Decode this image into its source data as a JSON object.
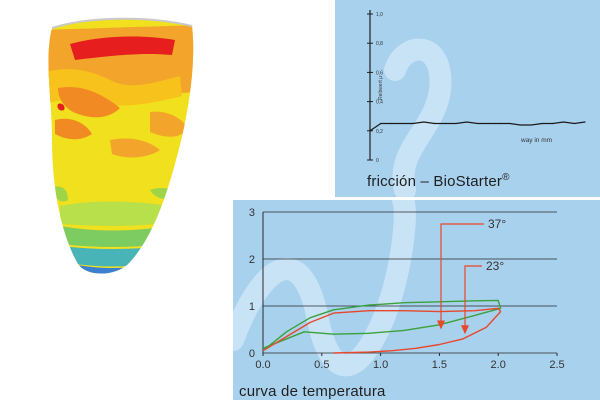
{
  "colors": {
    "panel_bg": "#a8d1ee",
    "swirl": "#cfe6f7",
    "axis": "#1f1f1f",
    "series_green": "#3aa23a",
    "series_red": "#e8472a",
    "annotation_arrow": "#e8472a"
  },
  "illustration": {
    "icon": "pressure-map-cone-icon"
  },
  "friction_chart": {
    "caption": "fricción – BioStarter",
    "caption_mark": "®",
    "ylabel": "Reibwert μ",
    "xlabel": "way in mm"
  },
  "temperature_chart": {
    "caption": "curva de temperatura",
    "annotation_37": "37°",
    "annotation_23": "23°"
  },
  "chart_data": [
    {
      "type": "line",
      "title": "fricción – BioStarter",
      "ylabel": "Reibwert μ",
      "xlabel": "way in mm",
      "y_ticks": [
        "0",
        "0,2",
        "0,4",
        "0,6",
        "0,8",
        "1,0"
      ],
      "ylim": [
        0,
        1.0
      ],
      "xlim": [
        0,
        10
      ],
      "grid": false,
      "series": [
        {
          "x": [
            0,
            0.5,
            1,
            1.5,
            2,
            2.5,
            3,
            3.5,
            4,
            4.5,
            5,
            5.5,
            6,
            6.5,
            7,
            7.5,
            8,
            8.5,
            9,
            9.5,
            10
          ],
          "values": [
            0.2,
            0.25,
            0.25,
            0.25,
            0.25,
            0.26,
            0.25,
            0.25,
            0.25,
            0.26,
            0.25,
            0.25,
            0.25,
            0.25,
            0.24,
            0.24,
            0.25,
            0.25,
            0.26,
            0.25,
            0.26
          ]
        }
      ]
    },
    {
      "type": "line",
      "title": "curva de temperatura",
      "x_ticks": [
        "0.0",
        "0.5",
        "1.0",
        "1.5",
        "2.0",
        "2.5"
      ],
      "y_ticks": [
        "0",
        "1",
        "2",
        "3"
      ],
      "xlim": [
        0,
        2.5
      ],
      "ylim": [
        0,
        3
      ],
      "grid": true,
      "series": [
        {
          "name": "37°",
          "x": [
            0.0,
            0.2,
            0.4,
            0.6,
            0.9,
            1.2,
            1.5,
            1.8,
            2.0,
            2.02,
            1.8,
            1.5,
            1.2,
            0.9,
            0.6,
            0.35,
            0.0
          ],
          "values": [
            0.05,
            0.45,
            0.75,
            0.92,
            1.02,
            1.07,
            1.09,
            1.11,
            1.12,
            0.95,
            0.8,
            0.6,
            0.48,
            0.42,
            0.4,
            0.45,
            0.1
          ]
        },
        {
          "name": "23°",
          "x": [
            0.0,
            0.2,
            0.4,
            0.6,
            0.9,
            1.2,
            1.5,
            1.8,
            2.0,
            2.02,
            1.9,
            1.7,
            1.5,
            1.3,
            1.1,
            0.9,
            0.6
          ],
          "values": [
            0.05,
            0.35,
            0.65,
            0.85,
            0.9,
            0.9,
            0.88,
            0.9,
            0.95,
            0.88,
            0.55,
            0.3,
            0.18,
            0.1,
            0.05,
            0.02,
            0.0
          ]
        }
      ],
      "annotations": [
        {
          "text": "37°",
          "points_to": [
            1.55,
            0.52
          ]
        },
        {
          "text": "23°",
          "points_to": [
            1.75,
            0.42
          ]
        }
      ]
    }
  ]
}
